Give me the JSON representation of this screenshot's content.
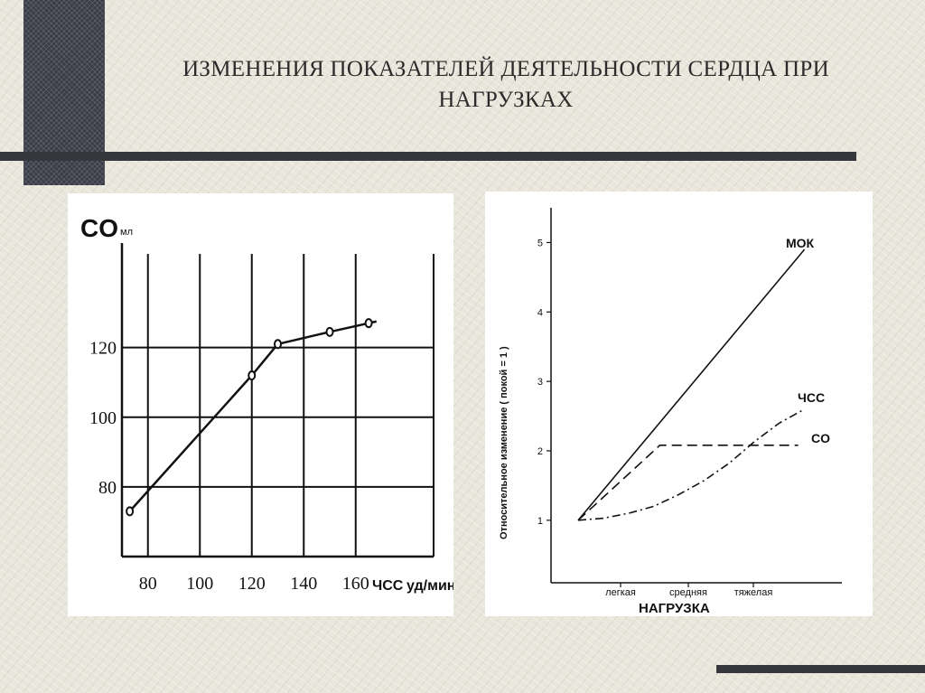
{
  "slide": {
    "title_line1": "ИЗМЕНЕНИЯ ПОКАЗАТЕЛЕЙ ДЕЯТЕЛЬНОСТИ СЕРДЦА ПРИ",
    "title_line2": "НАГРУЗКАХ"
  },
  "chart_data": [
    {
      "type": "line",
      "ylabel": "CO",
      "yunit": "мл",
      "xlabel": "ЧСС",
      "xunit": "уд/мин",
      "x_ticks": [
        "80",
        "100",
        "120",
        "140",
        "160"
      ],
      "y_ticks": [
        "80",
        "100",
        "120"
      ],
      "xlim": [
        70,
        190
      ],
      "ylim": [
        60,
        150
      ],
      "grid": true,
      "series": [
        {
          "values": [
            [
              73,
              73
            ],
            [
              120,
              112
            ],
            [
              130,
              121
            ],
            [
              150,
              124.5
            ],
            [
              165,
              127
            ],
            [
              168,
              127.5
            ]
          ],
          "markers": [
            [
              73,
              73
            ],
            [
              120,
              112
            ],
            [
              130,
              121
            ],
            [
              150,
              124.5
            ],
            [
              165,
              127
            ]
          ]
        }
      ]
    },
    {
      "type": "line",
      "ylabel": "Относительное  изменение ( покой = 1 )",
      "xlabel": "НАГРУЗКА",
      "x_ticks": [
        "легкая",
        "средняя",
        "тяжелая"
      ],
      "y_ticks": [
        "1",
        "2",
        "3",
        "4",
        "5"
      ],
      "ylim": [
        0.1,
        5.5
      ],
      "grid": false,
      "series": [
        {
          "name": "МОК",
          "style": "solid",
          "values": [
            [
              0,
              1
            ],
            [
              3.6,
              4.9
            ]
          ]
        },
        {
          "name": "ЧСС",
          "style": "dash-dot",
          "values": [
            [
              0,
              1
            ],
            [
              0.4,
              1.03
            ],
            [
              0.8,
              1.1
            ],
            [
              1.2,
              1.2
            ],
            [
              1.6,
              1.37
            ],
            [
              2.0,
              1.57
            ],
            [
              2.4,
              1.82
            ],
            [
              2.8,
              2.13
            ],
            [
              3.2,
              2.4
            ],
            [
              3.6,
              2.6
            ]
          ]
        },
        {
          "name": "CO",
          "style": "dashed",
          "values": [
            [
              0,
              1
            ],
            [
              1.3,
              2.08
            ],
            [
              3.5,
              2.08
            ]
          ]
        }
      ]
    }
  ]
}
